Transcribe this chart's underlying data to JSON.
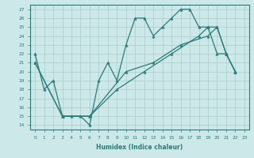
{
  "line1_x": [
    0,
    1,
    2,
    3,
    4,
    5,
    6,
    7,
    8,
    9,
    10,
    11,
    12,
    13,
    14,
    15,
    16,
    17,
    18,
    19,
    20,
    21,
    22
  ],
  "line1_y": [
    22,
    18,
    19,
    15,
    15,
    15,
    14,
    19,
    21,
    19,
    23,
    26,
    26,
    24,
    25,
    26,
    27,
    27,
    25,
    25,
    22,
    22,
    20
  ],
  "line2_x": [
    0,
    3,
    6,
    10,
    13,
    16,
    19,
    20,
    21,
    22
  ],
  "line2_y": [
    21,
    15,
    15,
    20,
    21,
    23,
    24,
    25,
    22,
    20
  ],
  "line3_x": [
    0,
    3,
    6,
    9,
    12,
    15,
    18,
    19,
    20,
    21,
    22
  ],
  "line3_y": [
    21,
    15,
    15,
    18,
    20,
    22,
    24,
    25,
    25,
    22,
    20
  ],
  "bg_color": "#cce8e8",
  "line_color": "#2d7a7a",
  "grid_color": "#aacccc",
  "xlabel": "Humidex (Indice chaleur)",
  "ylabel_ticks": [
    14,
    15,
    16,
    17,
    18,
    19,
    20,
    21,
    22,
    23,
    24,
    25,
    26,
    27
  ],
  "ylim": [
    13.5,
    27.5
  ],
  "xlim": [
    -0.5,
    23.5
  ],
  "xticks": [
    0,
    1,
    2,
    3,
    4,
    5,
    6,
    7,
    8,
    9,
    10,
    11,
    12,
    13,
    14,
    15,
    16,
    17,
    18,
    19,
    20,
    21,
    22,
    23
  ]
}
